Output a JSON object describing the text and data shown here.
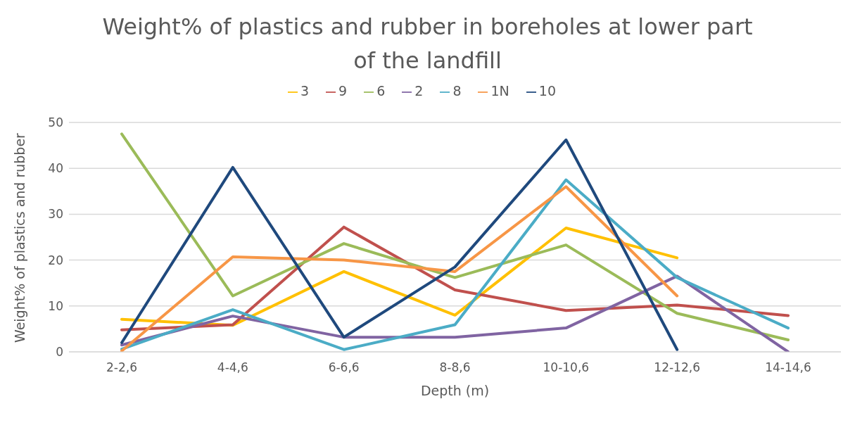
{
  "chart_data": {
    "type": "line",
    "title": "Weight% of plastics and rubber in boreholes at lower part of the landfill",
    "xlabel": "Depth (m)",
    "ylabel": "Weight% of plastics and rubber",
    "categories": [
      "2-2,6",
      "4-4,6",
      "6-6,6",
      "8-8,6",
      "10-10,6",
      "12-12,6",
      "14-14,6"
    ],
    "series": [
      {
        "name": "3",
        "color": "#ffc000",
        "values": [
          7.1,
          5.8,
          17.5,
          8,
          27,
          20.5,
          null
        ]
      },
      {
        "name": "9",
        "color": "#c0504d",
        "values": [
          4.8,
          5.9,
          27.2,
          13.5,
          9,
          10.2,
          7.9
        ]
      },
      {
        "name": "6",
        "color": "#9bbb59",
        "values": [
          47.5,
          12.2,
          23.6,
          16.2,
          23.3,
          8.4,
          2.6
        ]
      },
      {
        "name": "2",
        "color": "#8064a2",
        "values": [
          1.5,
          7.8,
          3.2,
          3.2,
          5.2,
          16.5,
          0
        ]
      },
      {
        "name": "8",
        "color": "#4bacc6",
        "values": [
          0.6,
          9.2,
          0.5,
          5.9,
          37.5,
          16.2,
          5.2
        ]
      },
      {
        "name": "1N",
        "color": "#f79646",
        "values": [
          0.2,
          20.7,
          20,
          17.5,
          36,
          12.2,
          null
        ]
      },
      {
        "name": "10",
        "color": "#1f497d",
        "values": [
          2,
          40.2,
          3.2,
          18.5,
          46.2,
          0.5,
          null
        ]
      }
    ],
    "ylim": [
      0,
      50
    ],
    "yticks": [
      0,
      10,
      20,
      30,
      40,
      50
    ],
    "grid": "y",
    "legend": "top",
    "marker": "none",
    "line_style": "solid"
  }
}
